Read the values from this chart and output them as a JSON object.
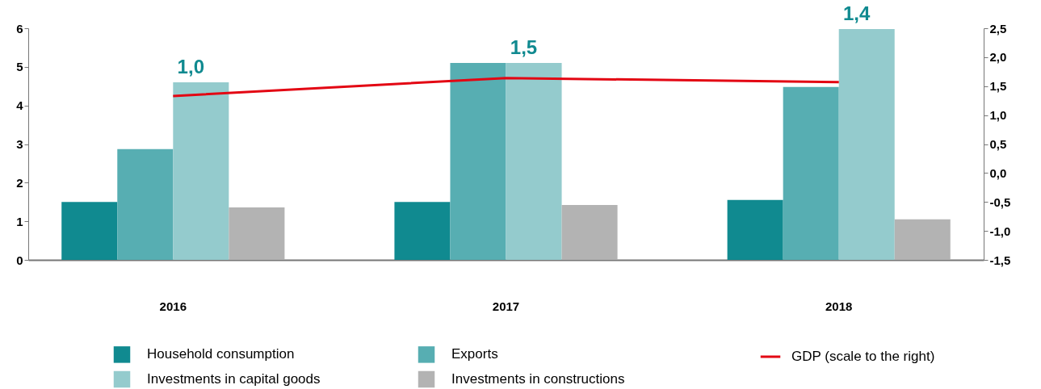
{
  "chart_data": {
    "type": "bar",
    "categories": [
      "2016",
      "2017",
      "2018"
    ],
    "series": [
      {
        "name": "Household consumption",
        "color": "#108a90",
        "values": [
          1.5,
          1.5,
          1.55
        ]
      },
      {
        "name": "Exports",
        "color": "#57aeb2",
        "values": [
          2.87,
          5.1,
          4.48
        ]
      },
      {
        "name": "Investments in capital goods",
        "color": "#94cbcd",
        "values": [
          4.6,
          5.1,
          5.98
        ]
      },
      {
        "name": "Investments in constructions",
        "color": "#b3b3b3",
        "values": [
          1.36,
          1.42,
          1.05
        ]
      },
      {
        "name": "GDP (scale to the right)",
        "type": "line",
        "axis": "y2",
        "color": "#e30613",
        "values": [
          1.33,
          1.64,
          1.57
        ]
      }
    ],
    "ylim": [
      0,
      6
    ],
    "yticks": [
      0,
      1,
      2,
      3,
      4,
      5,
      6
    ],
    "y2lim": [
      -1.5,
      2.5
    ],
    "y2ticks": [
      {
        "value": -1.5,
        "label": "-1,5"
      },
      {
        "value": -1,
        "label": "-1,0"
      },
      {
        "value": -0.5,
        "label": "-0,5"
      },
      {
        "value": 0,
        "label": "0,0"
      },
      {
        "value": 0.5,
        "label": "0,5"
      },
      {
        "value": 1,
        "label": "1,0"
      },
      {
        "value": 1.5,
        "label": "1,5"
      },
      {
        "value": 2,
        "label": "2,0"
      },
      {
        "value": 2.5,
        "label": "2,5"
      }
    ],
    "annotations": [
      {
        "text": "1,0",
        "x": "2016",
        "y": 4.6
      },
      {
        "text": "1,5",
        "x": "2017",
        "y": 5.1
      },
      {
        "text": "1,4",
        "x": "2018",
        "y": 5.98
      }
    ],
    "legend": "bottom",
    "grid": false
  }
}
